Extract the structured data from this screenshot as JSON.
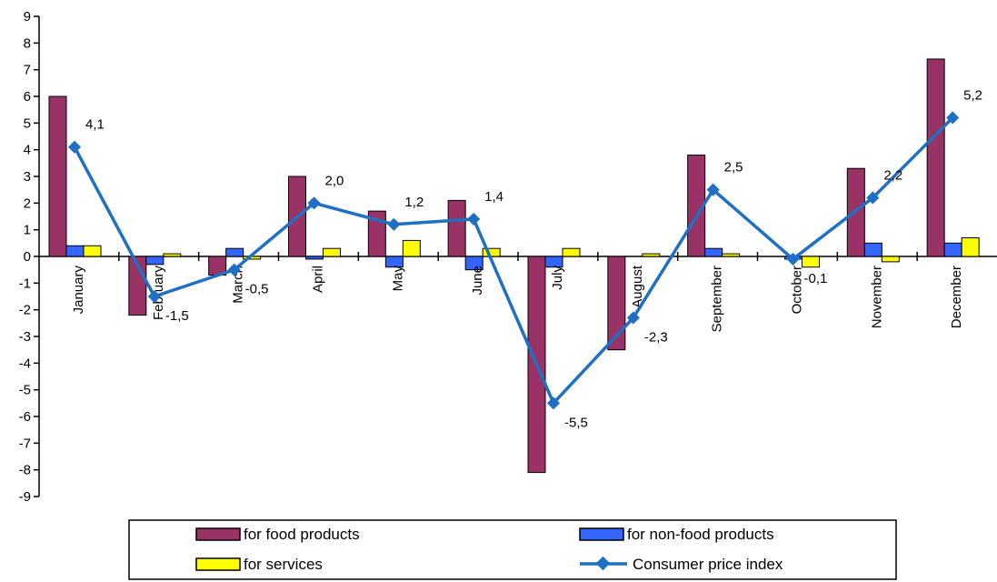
{
  "chart_data": {
    "type": "bar",
    "title": "",
    "xlabel": "",
    "ylabel": "",
    "ylim": [
      -9,
      9
    ],
    "yticks": [
      "9",
      "8",
      "7",
      "6",
      "5",
      "4",
      "3",
      "2",
      "1",
      "0",
      "-1",
      "-2",
      "-3",
      "-4",
      "-5",
      "-6",
      "-7",
      "-8",
      "-9"
    ],
    "ytick_values": [
      9,
      8,
      7,
      6,
      5,
      4,
      3,
      2,
      1,
      0,
      -1,
      -2,
      -3,
      -4,
      -5,
      -6,
      -7,
      -8,
      -9
    ],
    "categories": [
      "January",
      "February",
      "March",
      "April",
      "May",
      "June",
      "July",
      "August",
      "September",
      "October",
      "November",
      "December"
    ],
    "series": [
      {
        "name": "for food products",
        "kind": "bar",
        "color": "#993366",
        "values": [
          6.0,
          -2.2,
          -0.7,
          3.0,
          1.7,
          2.1,
          -8.1,
          -3.5,
          3.8,
          0.0,
          3.3,
          7.4
        ]
      },
      {
        "name": "for non-food products",
        "kind": "bar",
        "color": "#3366FF",
        "values": [
          0.4,
          -0.3,
          0.3,
          -0.1,
          -0.4,
          -0.5,
          -0.4,
          0.0,
          0.3,
          -0.1,
          0.5,
          0.5
        ]
      },
      {
        "name": "for services",
        "kind": "bar",
        "color": "#FFFF00",
        "values": [
          0.4,
          0.1,
          -0.1,
          0.3,
          0.6,
          0.3,
          0.3,
          0.1,
          0.1,
          -0.4,
          -0.2,
          0.7
        ]
      },
      {
        "name": "Consumer price index",
        "kind": "line",
        "color": "#1F6FC5",
        "values": [
          4.1,
          -1.5,
          -0.5,
          2.0,
          1.2,
          1.4,
          -5.5,
          -2.3,
          2.5,
          -0.1,
          2.2,
          5.2
        ],
        "labels": [
          "4,1",
          "-1,5",
          "-0,5",
          "2,0",
          "1,2",
          "1,4",
          "-5,5",
          "-2,3",
          "2,5",
          "-0,1",
          "2,2",
          "5,2"
        ]
      }
    ],
    "grid": false,
    "legend_position": "bottom"
  }
}
